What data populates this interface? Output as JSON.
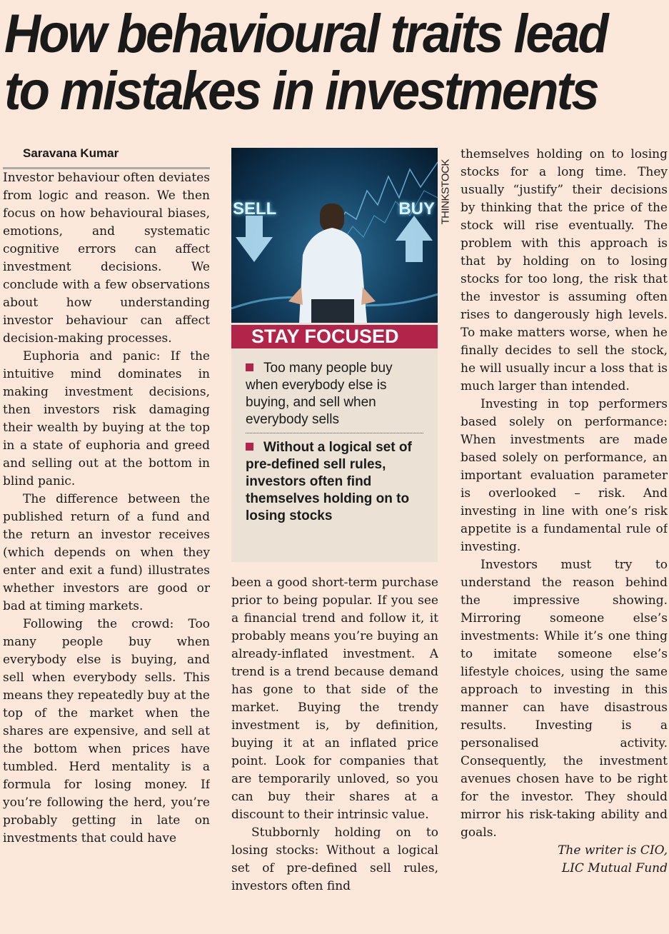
{
  "headline": {
    "line1": "How behavioural traits lead",
    "line2": "to mistakes in investments"
  },
  "byline": "Saravana Kumar",
  "sidebar": {
    "photo_labels": {
      "sell": "SELL",
      "buy": "BUY"
    },
    "photo_credit": "THINKSTOCK",
    "title": "STAY FOCUSED",
    "bullets": [
      "Too many people buy when everybody else is buying, and sell when everybody sells",
      "Without a logical set of pre-defined sell rules, investors often find themselves holding on to losing stocks"
    ],
    "accent_color": "#b3244a"
  },
  "columns": {
    "c1": [
      "Investor behaviour often deviates from logic and reason. We then focus on how behavioural biases, emotions, and systematic cognitive errors can affect investment decisions. We conclude with a few observations about how understanding investor behaviour can affect decision-making processes.",
      "Euphoria and panic: If the intuitive mind dominates in making investment decisions, then investors risk damaging their wealth by buying at the top in a state of euphoria and greed and selling out at the bottom in blind panic.",
      "The difference between the published return of a fund and the return an investor receives (which depends on when they enter and exit a fund) illustrates whether investors are good or bad at timing markets.",
      "Following the crowd: Too many people buy when everybody else is buying, and sell when everybody sells. This means they repeatedly buy at the top of the market when the shares are expensive, and sell at the bottom when prices have tumbled. Herd mentality is a formula for losing money. If you’re following the herd, you’re probably getting in late on investments that could have"
    ],
    "c2": [
      "been a good short-term purchase prior to being popular. If you see a financial trend and follow it, it probably means you’re buying an already-inflated investment. A trend is a trend because demand has gone to that side of the market. Buying the trendy investment is, by definition, buying it at an inflated price point. Look for companies that are temporarily unloved, so you can buy their shares at a discount to their intrinsic value.",
      "Stubbornly holding on to losing stocks: Without a logical set of pre-defined sell rules, investors often find"
    ],
    "c3": [
      "themselves holding on to losing stocks for a long time. They usually “justify” their decisions by thinking that the price of the stock will rise eventually. The problem with this approach is that by holding on to losing stocks for too long, the risk that the investor is assuming often rises to dangerously high levels. To make matters worse, when he finally decides to sell the stock, he will usually incur a loss that is much larger than intended.",
      "Investing in top performers based solely on performance: When investments are made based solely on performance, an important evaluation parameter is overlooked – risk. And investing in line with one’s risk appetite is a fundamental rule of investing.",
      "Investors must try to understand the reason behind the impressive showing. Mirroring someone else’s investments: While it’s one thing to imitate someone else’s lifestyle choices, using the same approach to investing in this manner can have disastrous results. Investing is a personalised activity. Consequently, the investment avenues chosen have to be right for the investor. They should mirror his risk-taking ability and goals."
    ],
    "signature": [
      "The writer is CIO,",
      "LIC Mutual Fund"
    ]
  }
}
